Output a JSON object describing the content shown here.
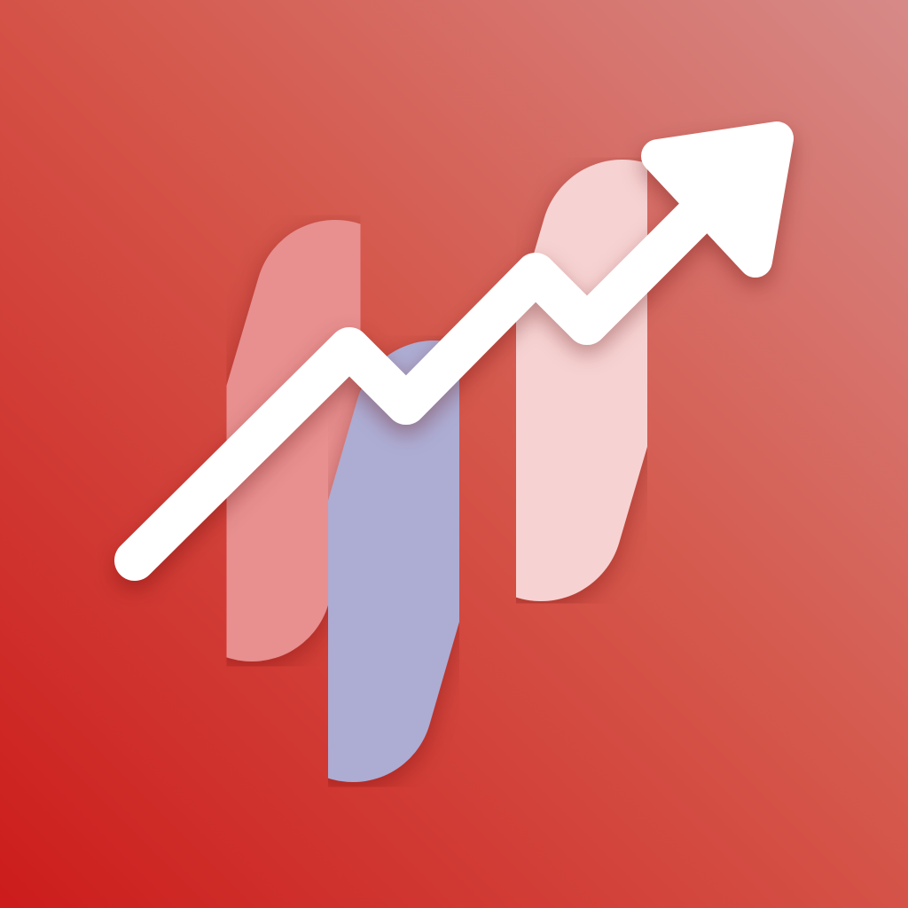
{
  "icon": {
    "name": "growth-chart-app-icon",
    "background": {
      "color_dark": "#cc1c1b",
      "color_mid": "#d5584c",
      "color_light": "#d68a88"
    },
    "bars": [
      {
        "name": "left-bar",
        "color": "#e88f8f"
      },
      {
        "name": "middle-bar",
        "color": "#adacd3"
      },
      {
        "name": "right-bar",
        "color": "#f7d2d2"
      }
    ],
    "trend_arrow": {
      "color": "#ffffff",
      "direction": "up-right"
    }
  }
}
